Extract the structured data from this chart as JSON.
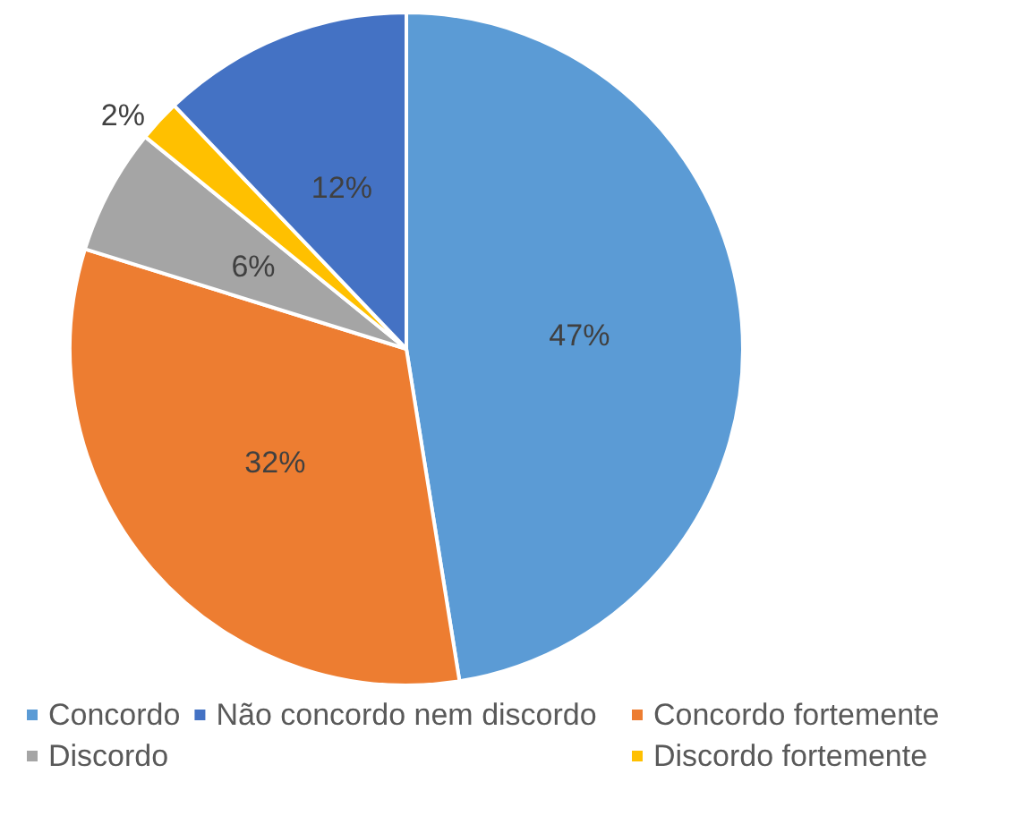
{
  "chart_data": {
    "type": "pie",
    "categories": [
      "Concordo",
      "Concordo fortemente",
      "Discordo",
      "Discordo fortemente",
      "Não concordo nem discordo"
    ],
    "values": [
      47,
      32,
      6,
      2,
      12
    ],
    "colors": [
      "#5b9bd5",
      "#ed7d31",
      "#a5a5a5",
      "#ffc000",
      "#4472c4"
    ],
    "value_labels": [
      "47%",
      "32%",
      "6%",
      "2%",
      "12%"
    ],
    "legend": "bottom"
  }
}
